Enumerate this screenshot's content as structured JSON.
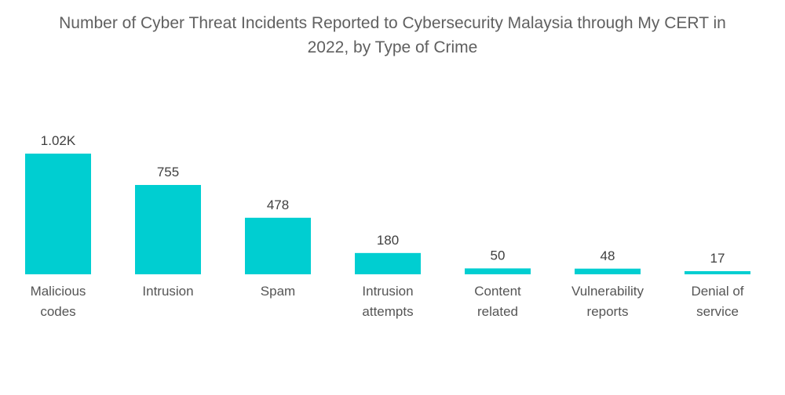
{
  "chart_data": {
    "type": "bar",
    "title": "Number of Cyber Threat Incidents Reported to Cybersecurity Malaysia through My CERT in 2022, by Type of Crime",
    "title_lines": [
      "Number of Cyber Threat Incidents Reported to Cybersecurity Malaysia through My CERT in",
      "2022, by Type of Crime"
    ],
    "categories": [
      [
        "Malicious",
        "codes"
      ],
      [
        "Intrusion"
      ],
      [
        "Spam"
      ],
      [
        "Intrusion",
        "attempts"
      ],
      [
        "Content",
        "related"
      ],
      [
        "Vulnerability",
        "reports"
      ],
      [
        "Denial of",
        "service"
      ]
    ],
    "values": [
      1020,
      755,
      478,
      180,
      50,
      48,
      17
    ],
    "value_labels": [
      "1.02K",
      "755",
      "478",
      "180",
      "50",
      "48",
      "17"
    ],
    "xlabel": "",
    "ylabel": "",
    "ylim": [
      0,
      1020
    ],
    "grid": false,
    "legend": "none",
    "colors": {
      "bar": "#00CED1",
      "title": "#606060"
    }
  }
}
